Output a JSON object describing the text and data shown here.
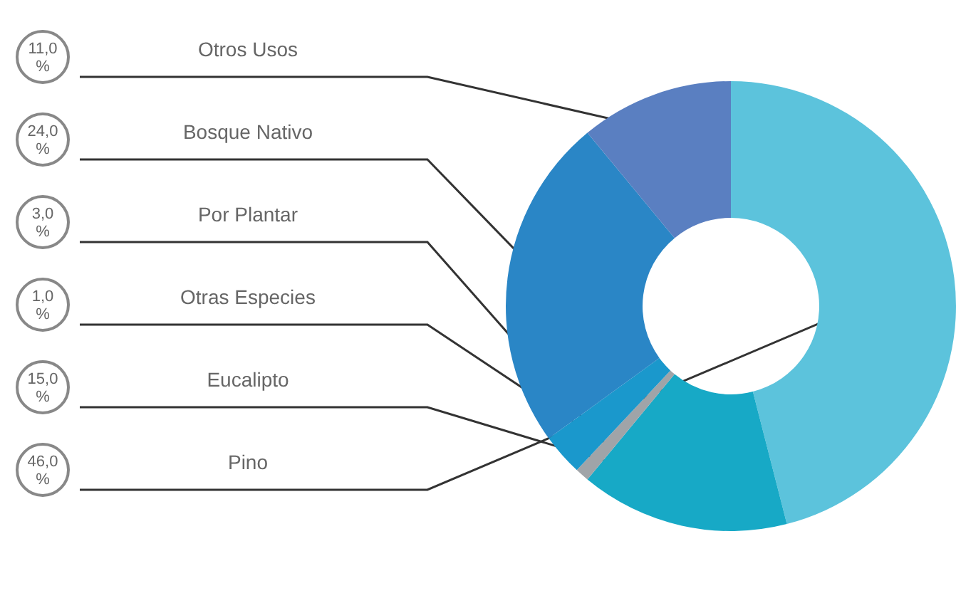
{
  "chart_data": {
    "type": "donut",
    "categories": [
      "Pino",
      "Eucalipto",
      "Otras Especies",
      "Por Plantar",
      "Bosque Nativo",
      "Otros Usos"
    ],
    "values": [
      46,
      15,
      1,
      3,
      24,
      11
    ],
    "value_labels": [
      "46,0\n%",
      "15,0\n%",
      "1,0\n%",
      "3,0\n%",
      "24,0\n%",
      "11,0\n%"
    ],
    "colors": [
      "#5cc3dc",
      "#17a9c6",
      "#a0a4a8",
      "#1a98cc",
      "#2a86c6",
      "#5a7fc1"
    ]
  }
}
